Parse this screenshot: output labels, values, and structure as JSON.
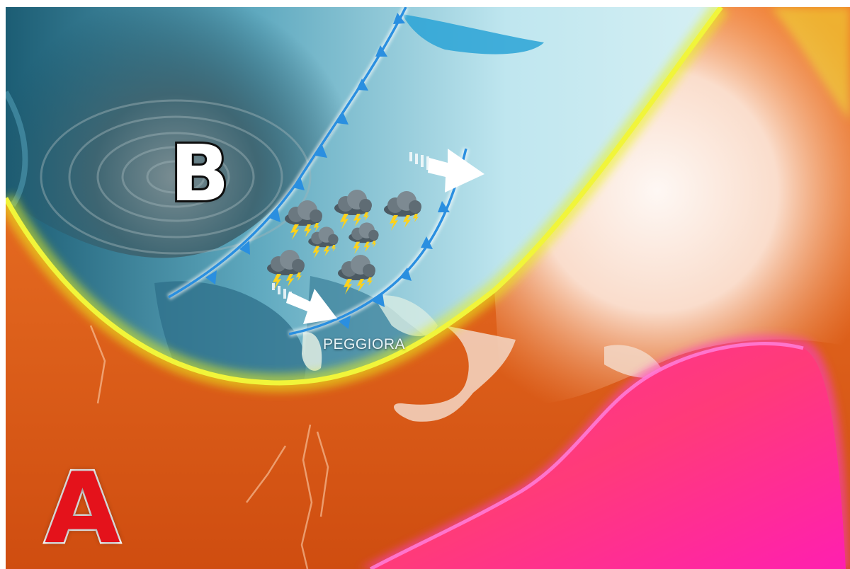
{
  "map": {
    "low_pressure_label": "B",
    "high_pressure_label": "A",
    "forecast_text": "PEGGIORA",
    "storm_icon": "thunderstorm-cloud-icon",
    "arrow_icon": "flow-arrow-icon"
  },
  "colors": {
    "low_pressure_zone": "#8fd3e6",
    "cyclone_core": "#3a5c66",
    "warm_air": "#e1641c",
    "hot_core": "#f0197a",
    "jet_stream_edge": "#e9f21a",
    "cold_front": "#2a8fe0",
    "warm_land": "#f3d7c6"
  }
}
